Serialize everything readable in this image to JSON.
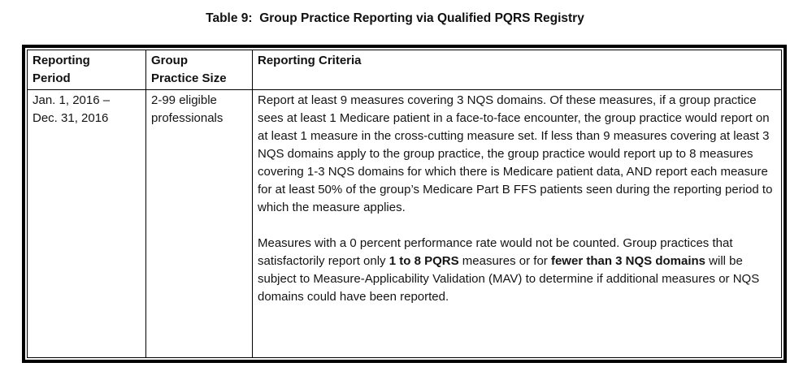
{
  "title": "Table 9:  Group Practice Reporting via Qualified PQRS Registry",
  "colors": {
    "background": "#ffffff",
    "text": "#141414",
    "border": "#000000"
  },
  "table": {
    "headers": [
      {
        "lines": [
          "Reporting",
          "Period"
        ]
      },
      {
        "lines": [
          "Group",
          "Practice Size"
        ]
      },
      {
        "lines": [
          "Reporting Criteria"
        ]
      }
    ],
    "rows": [
      {
        "period_lines": [
          "Jan. 1, 2016 –",
          "Dec. 31, 2016"
        ],
        "size_lines": [
          "2-99 eligible",
          "professionals"
        ],
        "criteria_paragraphs": [
          {
            "segments": [
              {
                "text": "Report at least 9 measures covering 3 NQS domains. Of these measures, if a group practice sees at least 1 Medicare patient in a face-to-face encounter, the group practice would report on at least 1 measure in the cross-cutting measure set. If less than 9 measures covering at least 3 NQS domains apply to the group practice, the group practice would report up to 8 measures covering 1-3 NQS domains for which there is Medicare patient data, AND report each measure for at least 50% of the group’s Medicare Part B FFS patients seen during the reporting period to which the measure applies.",
                "bold": false
              }
            ]
          },
          {
            "segments": [
              {
                "text": "Measures with a 0 percent performance rate would not be counted. Group practices that satisfactorily report only ",
                "bold": false
              },
              {
                "text": "1 to 8 PQRS",
                "bold": true
              },
              {
                "text": " measures or for ",
                "bold": false
              },
              {
                "text": "fewer than 3 NQS domains",
                "bold": true
              },
              {
                "text": " will be subject to Measure-Applicability Validation (MAV) to determine if additional measures or NQS domains could have been reported.",
                "bold": false
              }
            ]
          }
        ]
      }
    ]
  }
}
